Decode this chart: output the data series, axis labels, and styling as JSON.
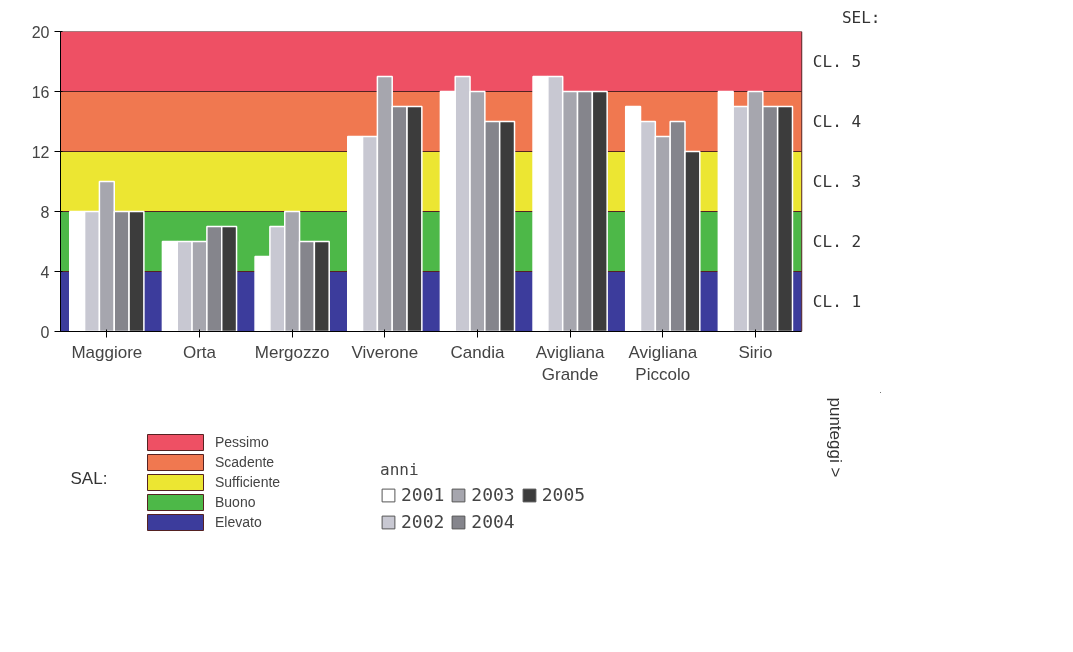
{
  "chart_data": {
    "type": "bar",
    "categories": [
      "Maggiore",
      "Orta",
      "Mergozzo",
      "Viverone",
      "Candia",
      "Avigliana Grande",
      "Avigliana Piccolo",
      "Sirio"
    ],
    "series": [
      {
        "name": "2001",
        "color": "#ffffff",
        "values": [
          8,
          6,
          5,
          13,
          16,
          17,
          15,
          16
        ]
      },
      {
        "name": "2002",
        "color": "#c8c8d2",
        "values": [
          8,
          6,
          7,
          13,
          17,
          17,
          14,
          15
        ]
      },
      {
        "name": "2003",
        "color": "#a6a6ae",
        "values": [
          10,
          6,
          8,
          17,
          16,
          16,
          13,
          16
        ]
      },
      {
        "name": "2004",
        "color": "#85858c",
        "values": [
          8,
          7,
          6,
          15,
          14,
          16,
          14,
          15
        ]
      },
      {
        "name": "2005",
        "color": "#3c3c3c",
        "values": [
          8,
          7,
          6,
          15,
          14,
          16,
          12,
          15
        ]
      }
    ],
    "ylim": [
      0,
      20
    ],
    "yticks": [
      0,
      4,
      8,
      12,
      16,
      20
    ],
    "bands": [
      {
        "axis": "y",
        "from": 16,
        "to": 20,
        "label": "Pessimo",
        "color": "#ee5064"
      },
      {
        "axis": "y",
        "from": 12,
        "to": 16,
        "label": "Scadente",
        "color": "#f07850"
      },
      {
        "axis": "y",
        "from": 8,
        "to": 12,
        "label": "Sufficiente",
        "color": "#ece632"
      },
      {
        "axis": "y",
        "from": 4,
        "to": 8,
        "label": "Buono",
        "color": "#4db848"
      },
      {
        "axis": "y",
        "from": 0,
        "to": 4,
        "label": "Elevato",
        "color": "#3c3c9c"
      }
    ],
    "legend_title": "anni",
    "legend": "bottom",
    "annotations": [
      "SEL:",
      "SAL:",
      "CL. 5",
      "CL. 4",
      "CL. 3",
      "CL. 2",
      "CL. 1",
      "punteggi >"
    ]
  }
}
